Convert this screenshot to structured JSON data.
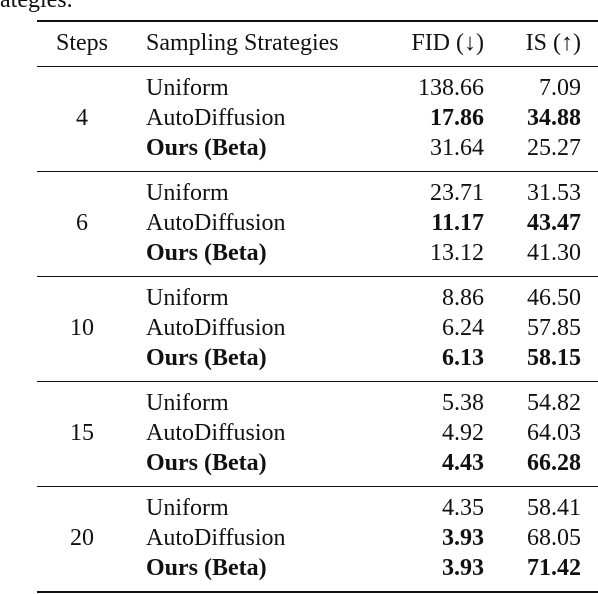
{
  "caption_fragment": "ategies.",
  "header": {
    "steps": "Steps",
    "strategy": "Sampling Strategies",
    "fid": "FID (↓)",
    "is": "IS (↑)"
  },
  "groups": [
    {
      "steps": "4",
      "rows": [
        {
          "strategy": "Uniform",
          "fid": "138.66",
          "is": "7.09"
        },
        {
          "strategy": "AutoDiffusion",
          "fid": "17.86",
          "is": "34.88"
        },
        {
          "strategy": "Ours (Beta)",
          "fid": "31.64",
          "is": "25.27"
        }
      ]
    },
    {
      "steps": "6",
      "rows": [
        {
          "strategy": "Uniform",
          "fid": "23.71",
          "is": "31.53"
        },
        {
          "strategy": "AutoDiffusion",
          "fid": "11.17",
          "is": "43.47"
        },
        {
          "strategy": "Ours (Beta)",
          "fid": "13.12",
          "is": "41.30"
        }
      ]
    },
    {
      "steps": "10",
      "rows": [
        {
          "strategy": "Uniform",
          "fid": "8.86",
          "is": "46.50"
        },
        {
          "strategy": "AutoDiffusion",
          "fid": "6.24",
          "is": "57.85"
        },
        {
          "strategy": "Ours (Beta)",
          "fid": "6.13",
          "is": "58.15"
        }
      ]
    },
    {
      "steps": "15",
      "rows": [
        {
          "strategy": "Uniform",
          "fid": "5.38",
          "is": "54.82"
        },
        {
          "strategy": "AutoDiffusion",
          "fid": "4.92",
          "is": "64.03"
        },
        {
          "strategy": "Ours (Beta)",
          "fid": "4.43",
          "is": "66.28"
        }
      ]
    },
    {
      "steps": "20",
      "rows": [
        {
          "strategy": "Uniform",
          "fid": "4.35",
          "is": "58.41"
        },
        {
          "strategy": "AutoDiffusion",
          "fid": "3.93",
          "is": "68.05"
        },
        {
          "strategy": "Ours (Beta)",
          "fid": "3.93",
          "is": "71.42"
        }
      ]
    }
  ]
}
